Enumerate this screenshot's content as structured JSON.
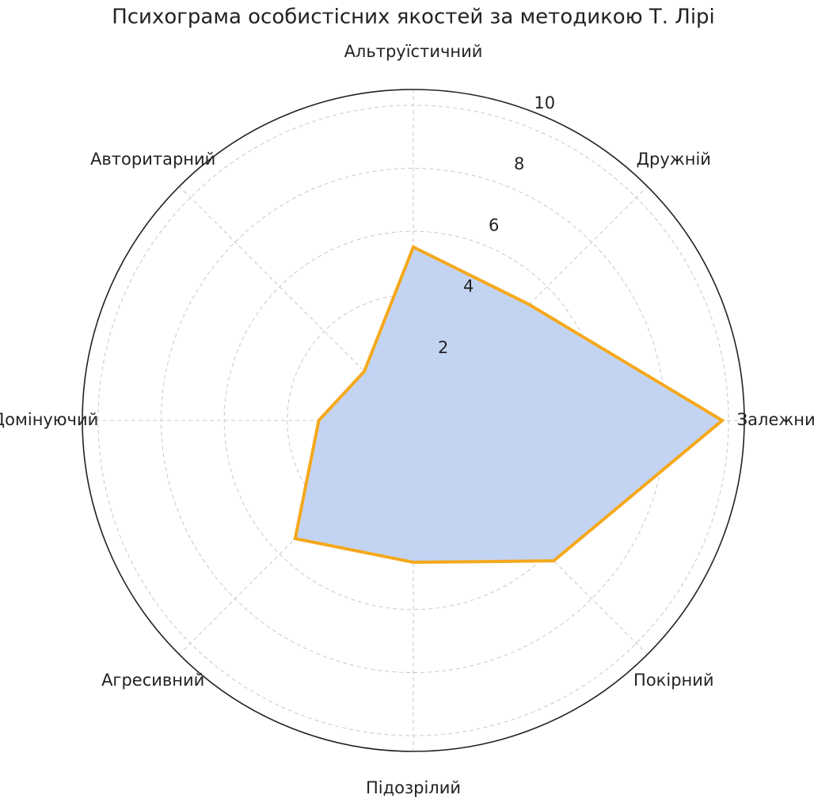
{
  "chart_data": {
    "type": "radar",
    "title": "Психограма особистісних якостей за методикою Т. Лірі",
    "categories": [
      "Альтруїстичний",
      "Дружній",
      "Залежний",
      "Покірний",
      "Підозрілий",
      "Агресивний",
      "Домінуючий",
      "Авторитарний"
    ],
    "values": [
      5.5,
      5.2,
      9.8,
      6.3,
      4.5,
      5.3,
      3.0,
      2.2
    ],
    "color": "#f5a81c",
    "fill": "#c3d4f3",
    "ylim": [
      0,
      10.5
    ],
    "yticks": [
      2,
      4,
      6,
      8,
      10
    ],
    "grid": true
  }
}
